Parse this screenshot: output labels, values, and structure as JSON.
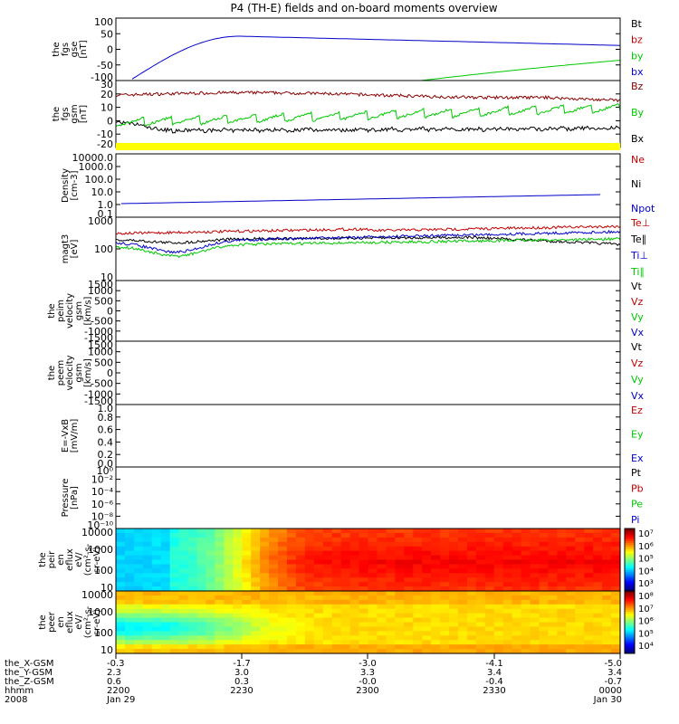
{
  "title": "P4 (TH-E) fields and on-board moments overview",
  "colors": {
    "black": "#000000",
    "red": "#c00000",
    "darkred": "#8b0000",
    "green": "#00c800",
    "blue": "#0000c8",
    "yellow": "#ffff00"
  },
  "chart_data": [
    {
      "id": "fgs-gse",
      "type": "line",
      "ylabel": [
        "the",
        "fgs",
        "gse",
        "[nT]"
      ],
      "yticks": [
        "100",
        "50",
        "0",
        "-50",
        "-100"
      ],
      "ylim": [
        -100,
        100
      ],
      "legend": [
        {
          "label": "Bt",
          "color": "#000000"
        },
        {
          "label": "bz",
          "color": "#c00000"
        },
        {
          "label": "by",
          "color": "#00c800"
        },
        {
          "label": "bx",
          "color": "#0000c8"
        }
      ]
    },
    {
      "id": "fgs-gsm",
      "type": "line",
      "ylabel": [
        "the",
        "fgs",
        "gsm",
        "[nT]"
      ],
      "yticks": [
        "30",
        "20",
        "10",
        "0",
        "-10",
        "-20"
      ],
      "ylim": [
        -25,
        30
      ],
      "legend": [
        {
          "label": "Bz",
          "color": "#8b0000"
        },
        {
          "label": "By",
          "color": "#00c800"
        },
        {
          "label": "Bx",
          "color": "#000000"
        }
      ]
    },
    {
      "id": "density",
      "type": "line",
      "ylabel": [
        "Density",
        "[cm-3]"
      ],
      "yticks": [
        "10000.0",
        "1000.0",
        "100.0",
        "10.0",
        "1.0",
        "0.1"
      ],
      "legend": [
        {
          "label": "Ne",
          "color": "#c00000"
        },
        {
          "label": "Ni",
          "color": "#000000"
        },
        {
          "label": "Npot",
          "color": "#0000c8"
        }
      ]
    },
    {
      "id": "temperature",
      "type": "line",
      "ylabel": [
        "magt3",
        "[eV]"
      ],
      "yticks": [
        "1000",
        "100",
        "10"
      ],
      "legend": [
        {
          "label": "Te⊥",
          "color": "#c00000"
        },
        {
          "label": "Te∥",
          "color": "#000000"
        },
        {
          "label": "Ti⊥",
          "color": "#0000c8"
        },
        {
          "label": "Ti∥",
          "color": "#00c800"
        }
      ]
    },
    {
      "id": "peim-velocity",
      "type": "line",
      "ylabel": [
        "the",
        "peim",
        "velocity",
        "gsm",
        "[km/s]"
      ],
      "yticks": [
        "1500",
        "1000",
        "500",
        "0",
        "-500",
        "-1000",
        "-1500"
      ],
      "legend": [
        {
          "label": "Vt",
          "color": "#000000"
        },
        {
          "label": "Vz",
          "color": "#c00000"
        },
        {
          "label": "Vy",
          "color": "#00c800"
        },
        {
          "label": "Vx",
          "color": "#0000c8"
        }
      ]
    },
    {
      "id": "peem-velocity",
      "type": "line",
      "ylabel": [
        "the",
        "peem",
        "velocity",
        "gsm",
        "[km/s]"
      ],
      "yticks": [
        "1500",
        "1000",
        "500",
        "0",
        "-500",
        "-1000",
        "-1500"
      ],
      "legend": [
        {
          "label": "Vt",
          "color": "#000000"
        },
        {
          "label": "Vz",
          "color": "#c00000"
        },
        {
          "label": "Vy",
          "color": "#00c800"
        },
        {
          "label": "Vx",
          "color": "#0000c8"
        }
      ]
    },
    {
      "id": "efield",
      "type": "line",
      "ylabel": [
        "E=-VxB",
        "[mV/m]"
      ],
      "yticks": [
        "1.0",
        "0.8",
        "0.6",
        "0.4",
        "0.2",
        "0.0"
      ],
      "legend": [
        {
          "label": "Ez",
          "color": "#c00000"
        },
        {
          "label": "Ey",
          "color": "#00c800"
        },
        {
          "label": "Ex",
          "color": "#0000c8"
        }
      ]
    },
    {
      "id": "pressure",
      "type": "line",
      "ylabel": [
        "Pressure",
        "[nPa]"
      ],
      "yticks": [
        "10⁰",
        "10⁻²",
        "10⁻⁴",
        "10⁻⁶",
        "10⁻⁸",
        "10⁻¹⁰"
      ],
      "legend": [
        {
          "label": "Pt",
          "color": "#000000"
        },
        {
          "label": "Pb",
          "color": "#c00000"
        },
        {
          "label": "Pe",
          "color": "#00c800"
        },
        {
          "label": "Pi",
          "color": "#0000c8"
        }
      ]
    },
    {
      "id": "peir-spectrogram",
      "type": "heatmap",
      "ylabel": [
        "the",
        "peir",
        "en",
        "eflux",
        "eV/",
        "(cm²-s-",
        "sr-eV)"
      ],
      "yticks": [
        "10000",
        "1000",
        "100",
        "10"
      ],
      "colorbar": [
        "10⁷",
        "10⁶",
        "10⁵",
        "10⁴",
        "10³"
      ]
    },
    {
      "id": "peer-spectrogram",
      "type": "heatmap",
      "ylabel": [
        "the",
        "peer",
        "en",
        "eflux",
        "eV/",
        "(cm²-s-",
        "sr-eV)"
      ],
      "yticks": [
        "10000",
        "1000",
        "100",
        "10"
      ],
      "colorbar": [
        "10⁸",
        "10⁷",
        "10⁶",
        "10⁵",
        "10⁴"
      ]
    }
  ],
  "xaxis": {
    "rows": [
      {
        "label": "the_X-GSM",
        "values": [
          "-0.3",
          "-1.7",
          "-3.0",
          "-4.1",
          "-5.0"
        ]
      },
      {
        "label": "the_Y-GSM",
        "values": [
          "2.3",
          "3.0",
          "3.3",
          "3.4",
          "3.4"
        ]
      },
      {
        "label": "the_Z-GSM",
        "values": [
          "0.6",
          "0.3",
          "-0.0",
          "-0.4",
          "-0.7"
        ]
      },
      {
        "label": "hhmm",
        "values": [
          "2200",
          "2230",
          "2300",
          "2330",
          "0000"
        ]
      },
      {
        "label": "2008",
        "values": [
          "Jan 29",
          "",
          "",
          "",
          "Jan 30"
        ]
      }
    ]
  }
}
